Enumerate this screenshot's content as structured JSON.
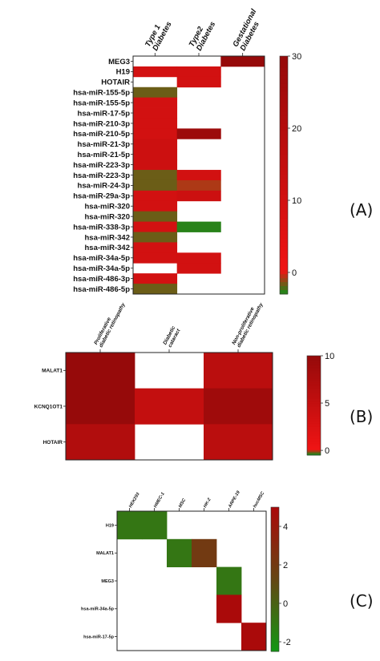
{
  "panels": {
    "a_label": "(A)",
    "b_label": "(B)",
    "c_label": "(C)"
  },
  "chart_data": [
    {
      "type": "heatmap",
      "panel": "(A)",
      "columns": [
        [
          "Type 1",
          "Diabetes"
        ],
        [
          "Type2",
          "Diabetes"
        ],
        [
          "Gestational",
          "Diabetes"
        ]
      ],
      "rows": [
        "MEG3",
        "H19",
        "HOTAIR",
        "hsa-miR-155-5p",
        "hsa-miR-155-5p",
        "hsa-miR-17-5p",
        "hsa-miR-210-3p",
        "hsa-miR-210-5p",
        "hsa-miR-21-3p",
        "hsa-miR-21-5p",
        "hsa-miR-223-3p",
        "hsa-miR-223-3p",
        "hsa-miR-24-3p",
        "hsa-miR-29a-3p",
        "hsa-miR-320",
        "hsa-miR-320",
        "hsa-miR-338-3p",
        "hsa-miR-342",
        "hsa-miR-342",
        "hsa-miR-34a-5p",
        "hsa-miR-34a-5p",
        "hsa-miR-486-3p",
        "hsa-miR-486-5p"
      ],
      "values": [
        [
          null,
          null,
          30
        ],
        [
          10,
          10,
          null
        ],
        [
          null,
          10,
          null
        ],
        [
          -2,
          null,
          null
        ],
        [
          10,
          null,
          null
        ],
        [
          10,
          null,
          null
        ],
        [
          10,
          null,
          null
        ],
        [
          10,
          28,
          null
        ],
        [
          12,
          null,
          null
        ],
        [
          12,
          null,
          null
        ],
        [
          12,
          null,
          null
        ],
        [
          -2,
          10,
          null
        ],
        [
          -2,
          -1,
          null
        ],
        [
          10,
          12,
          null
        ],
        [
          10,
          null,
          null
        ],
        [
          -2,
          null,
          null
        ],
        [
          10,
          -3,
          null
        ],
        [
          -2,
          null,
          null
        ],
        [
          10,
          null,
          null
        ],
        [
          10,
          10,
          null
        ],
        [
          null,
          10,
          null
        ],
        [
          10,
          null,
          null
        ],
        [
          -2,
          null,
          null
        ]
      ],
      "colorbar": {
        "min": -3,
        "max": 30,
        "ticks": [
          "30",
          "20",
          "10",
          "0"
        ]
      }
    },
    {
      "type": "heatmap",
      "panel": "(B)",
      "columns": [
        [
          "Proliferative",
          "diabetic retinopathy"
        ],
        [
          "Diabetic",
          "cataract"
        ],
        [
          "Non-proliferative",
          "diabetic retinopathy"
        ]
      ],
      "rows": [
        "MALAT1",
        "KCNQ1OT1",
        "HOTAIR"
      ],
      "values": [
        [
          10,
          null,
          6
        ],
        [
          10,
          5,
          9
        ],
        [
          7,
          null,
          6
        ]
      ],
      "colorbar": {
        "min": -0.5,
        "max": 10,
        "ticks": [
          "10",
          "5",
          "0"
        ]
      }
    },
    {
      "type": "heatmap",
      "panel": "(C)",
      "columns": [
        "HEK293",
        "HMEC-1",
        "MSC",
        "HK-2",
        "ARPE-19",
        "hucMSC"
      ],
      "rows": [
        "H19",
        "MALAT1",
        "MEG3",
        "hsa-miR-34a-5p",
        "hsa-miR-17-5p"
      ],
      "values": [
        [
          -1,
          -1,
          null,
          null,
          null,
          null
        ],
        [
          null,
          null,
          -1,
          2,
          null,
          null
        ],
        [
          null,
          null,
          null,
          null,
          -1,
          null
        ],
        [
          null,
          null,
          null,
          null,
          5,
          null
        ],
        [
          null,
          null,
          null,
          null,
          null,
          5
        ]
      ],
      "colorbar": {
        "min": -2.5,
        "max": 5,
        "ticks": [
          "4",
          "2",
          "0",
          "-2"
        ]
      }
    }
  ]
}
